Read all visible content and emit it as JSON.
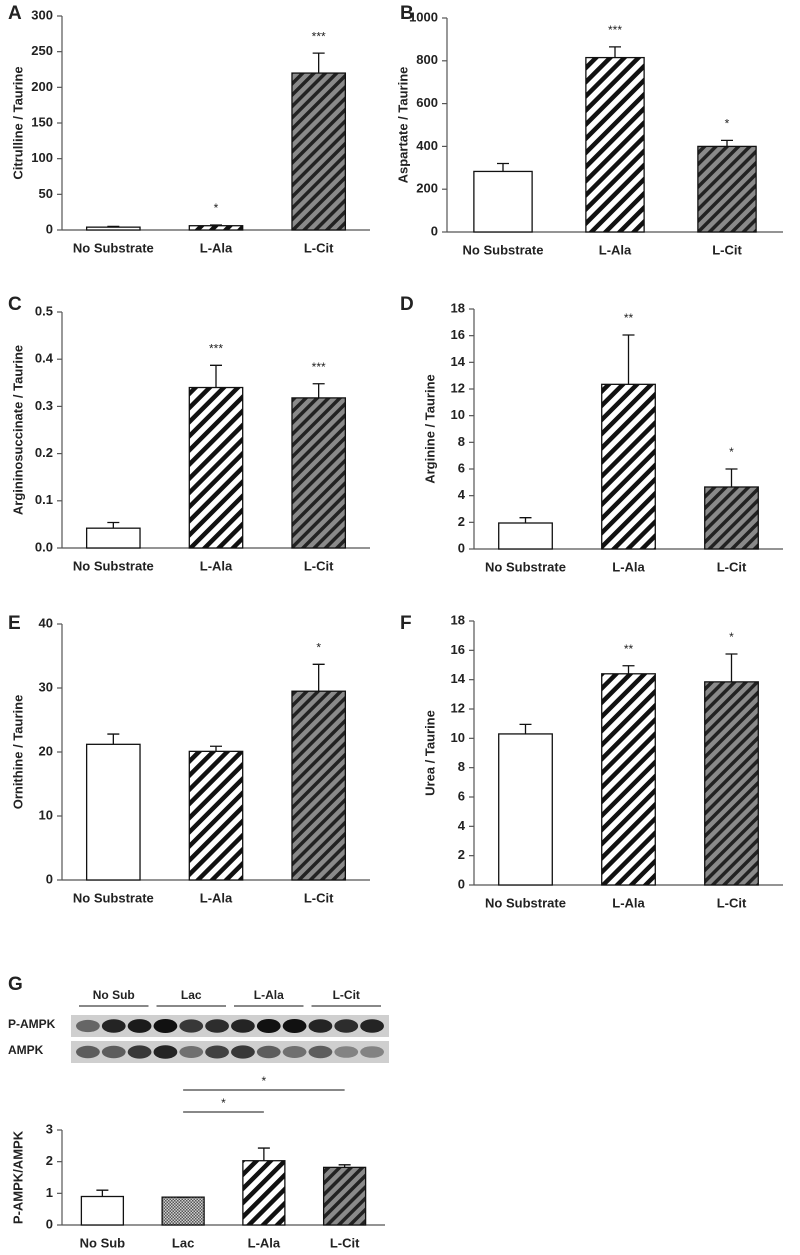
{
  "chart_data": [
    {
      "type": "bar",
      "panel": "A",
      "y_label": "Citrulline / Taurine",
      "categories": [
        "No Substrate",
        "L-Ala",
        "L-Cit"
      ],
      "values": [
        4,
        6,
        220
      ],
      "errors": [
        1,
        1,
        28
      ],
      "significance": [
        null,
        "*",
        "***"
      ],
      "fills": [
        "white",
        "stripes",
        "dark-stripes"
      ],
      "ylim": [
        0,
        300
      ],
      "yticks": [
        0,
        50,
        100,
        150,
        200,
        250,
        300
      ]
    },
    {
      "type": "bar",
      "panel": "B",
      "y_label": "Aspartate / Taurine",
      "categories": [
        "No Substrate",
        "L-Ala",
        "L-Cit"
      ],
      "values": [
        283,
        815,
        400
      ],
      "errors": [
        37,
        50,
        28
      ],
      "significance": [
        null,
        "***",
        "*"
      ],
      "fills": [
        "white",
        "stripes",
        "dark-stripes"
      ],
      "ylim": [
        0,
        1000
      ],
      "yticks": [
        0,
        200,
        400,
        600,
        800,
        1000
      ]
    },
    {
      "type": "bar",
      "panel": "C",
      "y_label": "Argininosuccinate / Taurine",
      "categories": [
        "No Substrate",
        "L-Ala",
        "L-Cit"
      ],
      "values": [
        0.042,
        0.34,
        0.318
      ],
      "errors": [
        0.012,
        0.047,
        0.03
      ],
      "significance": [
        null,
        "***",
        "***"
      ],
      "fills": [
        "white",
        "stripes",
        "dark-stripes"
      ],
      "ylim": [
        0,
        0.5
      ],
      "yticks": [
        {
          "value": 0,
          "label": "0.0"
        },
        0.1,
        0.2,
        0.3,
        0.4,
        0.5
      ]
    },
    {
      "type": "bar",
      "panel": "D",
      "y_label": "Arginine / Taurine",
      "categories": [
        "No Substrate",
        "L-Ala",
        "L-Cit"
      ],
      "values": [
        1.95,
        12.35,
        4.65
      ],
      "errors": [
        0.4,
        3.7,
        1.35
      ],
      "significance": [
        null,
        "**",
        "*"
      ],
      "fills": [
        "white",
        "stripes",
        "dark-stripes"
      ],
      "ylim": [
        0,
        18
      ],
      "yticks": [
        0,
        2,
        4,
        6,
        8,
        10,
        12,
        14,
        16,
        18
      ]
    },
    {
      "type": "bar",
      "panel": "E",
      "y_label": "Ornithine / Taurine",
      "categories": [
        "No Substrate",
        "L-Ala",
        "L-Cit"
      ],
      "values": [
        21.2,
        20.1,
        29.5
      ],
      "errors": [
        1.6,
        0.8,
        4.2
      ],
      "significance": [
        null,
        null,
        "*"
      ],
      "fills": [
        "white",
        "stripes",
        "dark-stripes"
      ],
      "ylim": [
        0,
        40
      ],
      "yticks": [
        0,
        10,
        20,
        30,
        40
      ]
    },
    {
      "type": "bar",
      "panel": "F",
      "y_label": "Urea / Taurine",
      "categories": [
        "No Substrate",
        "L-Ala",
        "L-Cit"
      ],
      "values": [
        10.3,
        14.4,
        13.85
      ],
      "errors": [
        0.65,
        0.55,
        1.9
      ],
      "significance": [
        null,
        "**",
        "*"
      ],
      "fills": [
        "white",
        "stripes",
        "dark-stripes"
      ],
      "ylim": [
        0,
        18
      ],
      "yticks": [
        0,
        2,
        4,
        6,
        8,
        10,
        12,
        14,
        16,
        18
      ]
    },
    {
      "type": "bar",
      "panel": "G",
      "y_label": "P-AMPK/AMPK",
      "categories": [
        "No Sub",
        "Lac",
        "L-Ala",
        "L-Cit"
      ],
      "values": [
        0.9,
        0.88,
        2.03,
        1.82
      ],
      "errors": [
        0.2,
        0,
        0.4,
        0.08
      ],
      "fills": [
        "white",
        "crosshatch",
        "stripes",
        "dark-stripes"
      ],
      "comparisons": [
        {
          "from": 1,
          "to": 2,
          "label": "*"
        },
        {
          "from": 1,
          "to": 3,
          "label": "*"
        }
      ],
      "blot": {
        "groups": [
          "No Sub",
          "Lac",
          "L-Ala",
          "L-Cit"
        ],
        "rows": [
          "P-AMPK",
          "AMPK"
        ]
      },
      "ylim": [
        0,
        3
      ],
      "yticks": [
        0,
        1,
        2,
        3
      ]
    }
  ]
}
